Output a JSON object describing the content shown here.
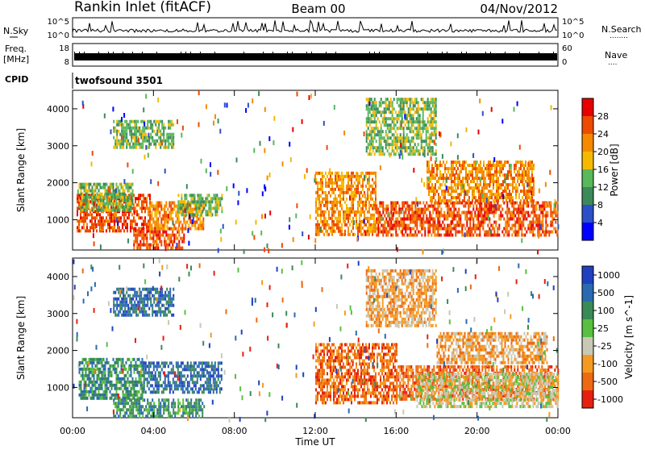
{
  "header": {
    "station": "Rankin Inlet (fitACF)",
    "beam": "Beam 00",
    "date": "04/Nov/2012"
  },
  "noise_panel": {
    "left_label": "N.Sky",
    "left_ticks": [
      "10^5",
      "10^0"
    ],
    "right_label": "N.Search",
    "right_ticks": [
      "10^5",
      "10^0"
    ],
    "right_marker": "........"
  },
  "freq_panel": {
    "left_label_line1": "Freq.",
    "left_label_line2": "[MHz]",
    "left_ticks": [
      "18",
      "8"
    ],
    "right_label": "Nave",
    "right_ticks": [
      "60",
      "0"
    ],
    "right_marker": "...."
  },
  "cpid_panel": {
    "label": "CPID",
    "program": "twofsound 3501"
  },
  "colors": {
    "power": [
      "#0000ff",
      "#2b50c8",
      "#3c8a5a",
      "#58b85a",
      "#f5b900",
      "#f58a00",
      "#ee4a00",
      "#e60000"
    ],
    "velocity": [
      "#2040c0",
      "#2a6ab0",
      "#3a8a55",
      "#58c040",
      "#c8c8b4",
      "#f59a20",
      "#ee6a10",
      "#e62010"
    ]
  },
  "chart_data": [
    {
      "type": "heatmap",
      "quantity": "Power",
      "ylabel": "Slant Range [km]",
      "xlabel": "",
      "x_ticks": [
        "00:00",
        "04:00",
        "08:00",
        "12:00",
        "16:00",
        "20:00",
        "00:00"
      ],
      "y_ticks": [
        1000,
        2000,
        3000,
        4000
      ],
      "ylim": [
        180,
        4500
      ],
      "xlim_hours": [
        0,
        24
      ],
      "colorbar": {
        "label": "Power [dB]",
        "tick_labels": [
          "4",
          "8",
          "12",
          "16",
          "20",
          "24",
          "28"
        ]
      },
      "regions": [
        {
          "t0": 0.2,
          "t1": 3.8,
          "r0": 700,
          "r1": 1700,
          "level": 6
        },
        {
          "t0": 3.0,
          "t1": 5.5,
          "r0": 250,
          "r1": 800,
          "level": 6
        },
        {
          "t0": 3.8,
          "t1": 6.5,
          "r0": 750,
          "r1": 1500,
          "level": 5
        },
        {
          "t0": 5.2,
          "t1": 7.4,
          "r0": 1100,
          "r1": 1700,
          "level": 3
        },
        {
          "t0": 0.3,
          "t1": 3.0,
          "r0": 1300,
          "r1": 2000,
          "level": 3
        },
        {
          "t0": 2.0,
          "t1": 5.0,
          "r0": 3000,
          "r1": 3700,
          "level": 3
        },
        {
          "t0": 12.0,
          "t1": 15.0,
          "r0": 600,
          "r1": 2300,
          "level": 5
        },
        {
          "t0": 15.0,
          "t1": 24.0,
          "r0": 600,
          "r1": 1500,
          "level": 6
        },
        {
          "t0": 17.5,
          "t1": 22.8,
          "r0": 1500,
          "r1": 2600,
          "level": 5
        },
        {
          "t0": 14.5,
          "t1": 18.0,
          "r0": 2800,
          "r1": 4300,
          "level": 3
        }
      ]
    },
    {
      "type": "heatmap",
      "quantity": "Velocity",
      "ylabel": "Slant Range [km]",
      "xlabel": "Time UT",
      "x_ticks": [
        "00:00",
        "04:00",
        "08:00",
        "12:00",
        "16:00",
        "20:00",
        "00:00"
      ],
      "y_ticks": [
        1000,
        2000,
        3000,
        4000
      ],
      "ylim": [
        180,
        4500
      ],
      "xlim_hours": [
        0,
        24
      ],
      "colorbar": {
        "label": "Velocity [m s^-1]",
        "tick_labels": [
          "1000",
          "500",
          "100",
          "25",
          "-25",
          "-100",
          "-500",
          "-1000"
        ]
      },
      "regions": [
        {
          "t0": 0.3,
          "t1": 3.5,
          "r0": 700,
          "r1": 1800,
          "level": 2
        },
        {
          "t0": 3.5,
          "t1": 7.4,
          "r0": 900,
          "r1": 1700,
          "level": 1
        },
        {
          "t0": 2.0,
          "t1": 6.5,
          "r0": 250,
          "r1": 700,
          "level": 2
        },
        {
          "t0": 2.0,
          "t1": 5.0,
          "r0": 3000,
          "r1": 3700,
          "level": 1
        },
        {
          "t0": 12.0,
          "t1": 16.0,
          "r0": 600,
          "r1": 2200,
          "level": 6
        },
        {
          "t0": 16.0,
          "t1": 24.0,
          "r0": 700,
          "r1": 1600,
          "level": 6
        },
        {
          "t0": 17.0,
          "t1": 24.0,
          "r0": 500,
          "r1": 1400,
          "level": 4
        },
        {
          "t0": 18.0,
          "t1": 23.5,
          "r0": 1700,
          "r1": 2500,
          "level": 5
        },
        {
          "t0": 14.5,
          "t1": 18.0,
          "r0": 2700,
          "r1": 4200,
          "level": 5
        }
      ]
    }
  ]
}
